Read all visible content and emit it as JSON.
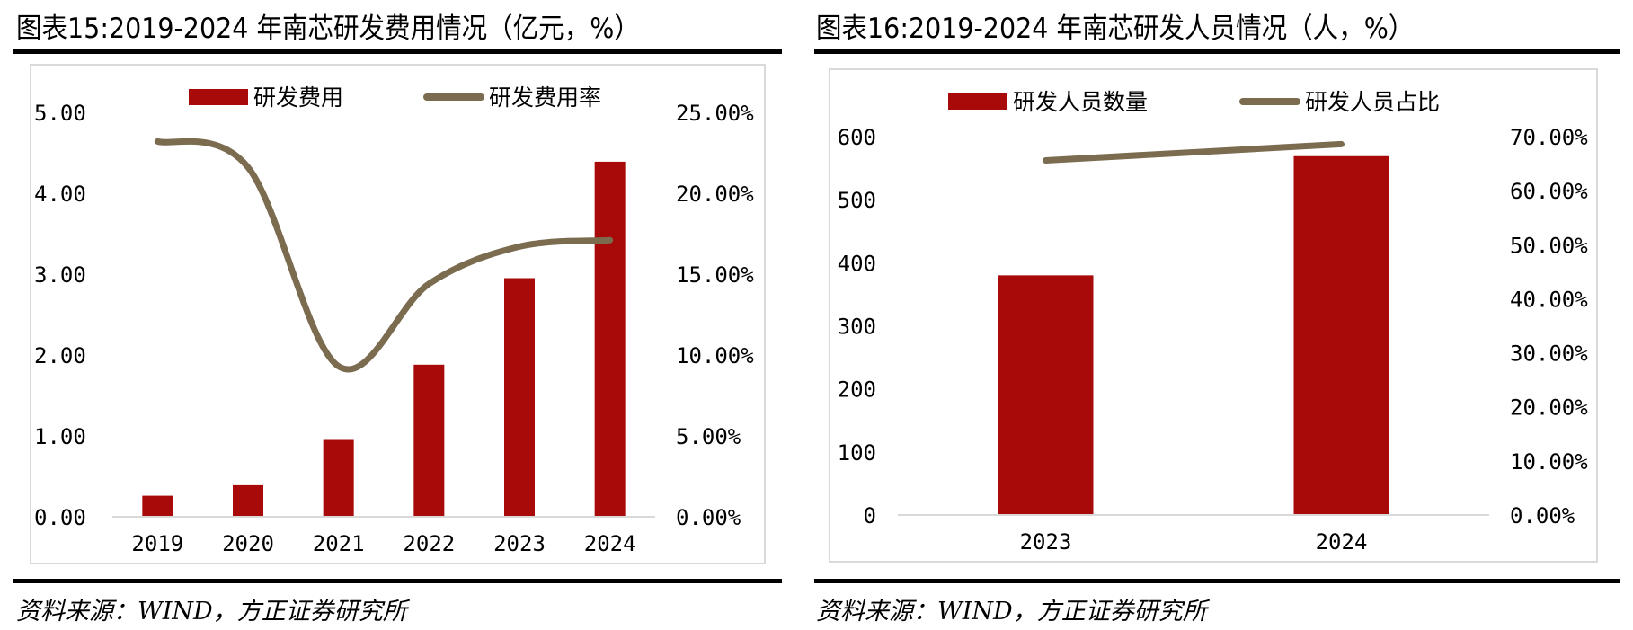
{
  "colors": {
    "bar": "#a80a0a",
    "line": "#7b6b4f",
    "axis": "#d9d9d9"
  },
  "left": {
    "title": "图表15:2019-2024 年南芯研发费用情况（亿元，%）",
    "source": "资料来源：WIND，方正证券研究所"
  },
  "right": {
    "title": "图表16:2019-2024 年南芯研发人员情况（人，%）",
    "source": "资料来源：WIND，方正证券研究所"
  },
  "chart_data": [
    {
      "type": "bar",
      "title": "图表15:2019-2024 年南芯研发费用情况（亿元，%）",
      "categories": [
        "2019",
        "2020",
        "2021",
        "2022",
        "2023",
        "2024"
      ],
      "series": [
        {
          "name": "研发费用",
          "kind": "bar",
          "axis": "left",
          "values": [
            0.26,
            0.39,
            0.95,
            1.88,
            2.95,
            4.39
          ]
        },
        {
          "name": "研发费用率",
          "kind": "line",
          "axis": "right",
          "smooth": true,
          "values": [
            23.2,
            21.6,
            9.3,
            14.4,
            16.7,
            17.1
          ]
        }
      ],
      "ylim": [
        0,
        5
      ],
      "y_ticks": [
        "0.00",
        "1.00",
        "2.00",
        "3.00",
        "4.00",
        "5.00"
      ],
      "y2lim": [
        0,
        25
      ],
      "y2_ticks": [
        "0.00%",
        "5.00%",
        "10.00%",
        "15.00%",
        "20.00%",
        "25.00%"
      ],
      "legend": [
        "研发费用",
        "研发费用率"
      ],
      "legend_position": "top",
      "grid": false,
      "xlabel": "",
      "ylabel": ""
    },
    {
      "type": "bar",
      "title": "图表16:2019-2024 年南芯研发人员情况（人，%）",
      "categories": [
        "2023",
        "2024"
      ],
      "series": [
        {
          "name": "研发人员数量",
          "kind": "bar",
          "axis": "left",
          "values": [
            380,
            569
          ]
        },
        {
          "name": "研发人员占比",
          "kind": "line",
          "axis": "right",
          "smooth": false,
          "values": [
            65.6,
            68.6
          ]
        }
      ],
      "ylim": [
        0,
        600
      ],
      "y_ticks": [
        "0",
        "100",
        "200",
        "300",
        "400",
        "500",
        "600"
      ],
      "y2lim": [
        0,
        70
      ],
      "y2_ticks": [
        "0.00%",
        "10.00%",
        "20.00%",
        "30.00%",
        "40.00%",
        "50.00%",
        "60.00%",
        "70.00%"
      ],
      "legend": [
        "研发人员数量",
        "研发人员占比"
      ],
      "legend_position": "top",
      "grid": false,
      "xlabel": "",
      "ylabel": ""
    }
  ]
}
